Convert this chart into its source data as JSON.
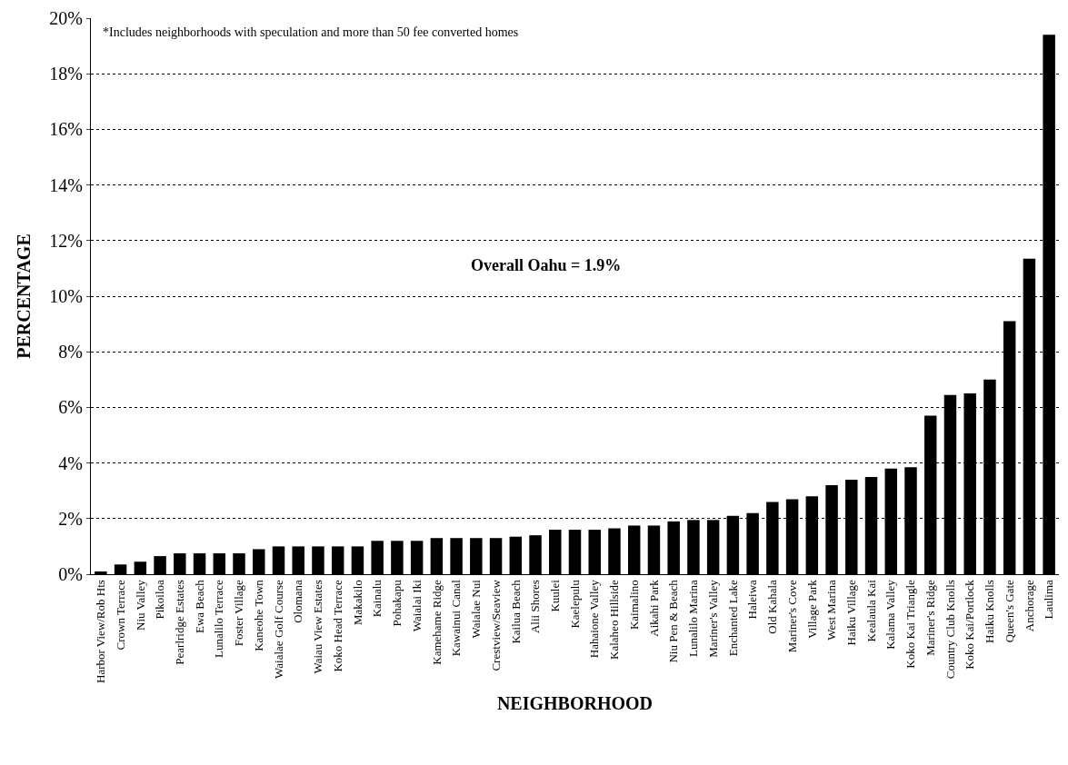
{
  "chart_data": {
    "type": "bar",
    "xlabel": "NEIGHBORHOOD",
    "ylabel": "PERCENTAGE",
    "categories": [
      "Harbor View/Rob Hts",
      "Crown Terrace",
      "Niu Valley",
      "Pikoiloa",
      "Pearlridge Estates",
      "Ewa Beach",
      "Lunalilo Terrace",
      "Foster Village",
      "Kaneohe Town",
      "Waialae Golf Course",
      "Olomana",
      "Waiau View Estates",
      "Koko Head Terrace",
      "Makakilo",
      "Kainalu",
      "Pohakapu",
      "Waialai Iki",
      "Kamehame Ridge",
      "Kawainui Canal",
      "Waialae Nui",
      "Crestview/Seaview",
      "Kailua Beach",
      "Alii Shores",
      "Kuulei",
      "Kaelepulu",
      "Hahaione Valley",
      "Kalaheo Hillside",
      "Kaimalino",
      "Aikahi Park",
      "Niu Pen & Beach",
      "Lunalilo Marina",
      "Mariner's Valley",
      "Enchanted Lake",
      "Haleiwa",
      "Old Kahala",
      "Mariner's Cove",
      "Village Park",
      "West Marina",
      "Haiku Village",
      "Kealaula Kai",
      "Kalama Valley",
      "Koko Kai Triangle",
      "Mariner's Ridge",
      "Country Club Knolls",
      "Koko Kai/Portlock",
      "Haiku Knolls",
      "Queen's Gate",
      "Anchorage",
      "Laulima"
    ],
    "values": [
      0.1,
      0.35,
      0.45,
      0.65,
      0.75,
      0.75,
      0.75,
      0.75,
      0.9,
      1.0,
      1.0,
      1.0,
      1.0,
      1.0,
      1.2,
      1.2,
      1.2,
      1.3,
      1.3,
      1.3,
      1.3,
      1.35,
      1.4,
      1.6,
      1.6,
      1.6,
      1.65,
      1.75,
      1.75,
      1.9,
      1.95,
      1.95,
      2.1,
      2.2,
      2.6,
      2.7,
      2.8,
      3.2,
      3.4,
      3.5,
      3.8,
      3.85,
      5.7,
      6.45,
      6.5,
      7.0,
      9.1,
      11.35,
      19.4
    ],
    "color": "#000000",
    "ylim": [
      0,
      20
    ],
    "yticks": [
      {
        "value": 0,
        "label": "0%"
      },
      {
        "value": 2,
        "label": "2%"
      },
      {
        "value": 4,
        "label": "4%"
      },
      {
        "value": 6,
        "label": "6%"
      },
      {
        "value": 8,
        "label": "8%"
      },
      {
        "value": 10,
        "label": "10%"
      },
      {
        "value": 12,
        "label": "12%"
      },
      {
        "value": 14,
        "label": "14%"
      },
      {
        "value": 16,
        "label": "16%"
      },
      {
        "value": 18,
        "label": "18%"
      },
      {
        "value": 20,
        "label": "20%"
      }
    ],
    "grid": "y",
    "annotations": [
      "*Includes neighborhoods with speculation and more than 50 fee converted homes",
      "Overall Oahu = 1.9%"
    ]
  }
}
